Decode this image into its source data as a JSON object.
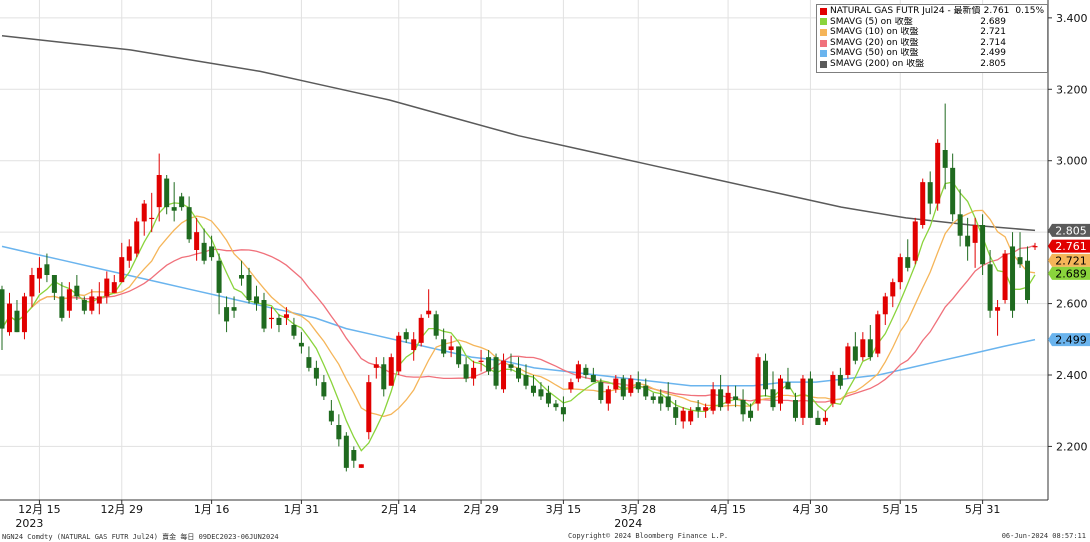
{
  "chart_data": {
    "type": "candlestick",
    "x": {
      "tick_labels": [
        "12月 15",
        "12月 29",
        "1月 16",
        "1月 31",
        "2月 14",
        "2月 29",
        "3月 15",
        "3月 28",
        "4月 15",
        "4月 30",
        "5月 15",
        "5月 31"
      ],
      "year_labels": [
        "2023",
        "2024"
      ]
    },
    "y": {
      "range": [
        2.05,
        3.45
      ],
      "tick_labels": [
        "2.200",
        "2.400",
        "2.600",
        "2.800",
        "3.000",
        "3.200",
        "3.400"
      ],
      "ticks": [
        2.2,
        2.4,
        2.6,
        2.8,
        3.0,
        3.2,
        3.4
      ],
      "position": "right"
    },
    "grid": true,
    "legend_position": "top-right",
    "ohlc": [
      {
        "o": 2.64,
        "h": 2.65,
        "l": 2.47,
        "c": 2.53
      },
      {
        "o": 2.52,
        "h": 2.63,
        "l": 2.51,
        "c": 2.6
      },
      {
        "o": 2.58,
        "h": 2.61,
        "l": 2.52,
        "c": 2.52
      },
      {
        "o": 2.52,
        "h": 2.63,
        "l": 2.5,
        "c": 2.62
      },
      {
        "o": 2.62,
        "h": 2.7,
        "l": 2.59,
        "c": 2.68
      },
      {
        "o": 2.67,
        "h": 2.73,
        "l": 2.63,
        "c": 2.7
      },
      {
        "o": 2.71,
        "h": 2.74,
        "l": 2.66,
        "c": 2.68
      },
      {
        "o": 2.68,
        "h": 2.68,
        "l": 2.61,
        "c": 2.63
      },
      {
        "o": 2.62,
        "h": 2.66,
        "l": 2.55,
        "c": 2.56
      },
      {
        "o": 2.58,
        "h": 2.66,
        "l": 2.56,
        "c": 2.64
      },
      {
        "o": 2.65,
        "h": 2.68,
        "l": 2.61,
        "c": 2.62
      },
      {
        "o": 2.61,
        "h": 2.62,
        "l": 2.57,
        "c": 2.58
      },
      {
        "o": 2.58,
        "h": 2.64,
        "l": 2.57,
        "c": 2.62
      },
      {
        "o": 2.6,
        "h": 2.66,
        "l": 2.57,
        "c": 2.62
      },
      {
        "o": 2.62,
        "h": 2.69,
        "l": 2.6,
        "c": 2.67
      },
      {
        "o": 2.63,
        "h": 2.68,
        "l": 2.63,
        "c": 2.66
      },
      {
        "o": 2.66,
        "h": 2.77,
        "l": 2.66,
        "c": 2.73
      },
      {
        "o": 2.72,
        "h": 2.78,
        "l": 2.7,
        "c": 2.76
      },
      {
        "o": 2.74,
        "h": 2.84,
        "l": 2.73,
        "c": 2.83
      },
      {
        "o": 2.83,
        "h": 2.89,
        "l": 2.79,
        "c": 2.88
      },
      {
        "o": 2.84,
        "h": 2.91,
        "l": 2.8,
        "c": 2.84
      },
      {
        "o": 2.87,
        "h": 3.02,
        "l": 2.83,
        "c": 2.96
      },
      {
        "o": 2.95,
        "h": 2.96,
        "l": 2.85,
        "c": 2.87
      },
      {
        "o": 2.87,
        "h": 2.94,
        "l": 2.83,
        "c": 2.86
      },
      {
        "o": 2.9,
        "h": 2.91,
        "l": 2.86,
        "c": 2.87
      },
      {
        "o": 2.87,
        "h": 2.9,
        "l": 2.77,
        "c": 2.78
      },
      {
        "o": 2.75,
        "h": 2.84,
        "l": 2.72,
        "c": 2.8
      },
      {
        "o": 2.77,
        "h": 2.81,
        "l": 2.71,
        "c": 2.72
      },
      {
        "o": 2.76,
        "h": 2.79,
        "l": 2.72,
        "c": 2.73
      },
      {
        "o": 2.72,
        "h": 2.74,
        "l": 2.57,
        "c": 2.63
      },
      {
        "o": 2.59,
        "h": 2.62,
        "l": 2.52,
        "c": 2.55
      },
      {
        "o": 2.59,
        "h": 2.62,
        "l": 2.56,
        "c": 2.58
      },
      {
        "o": 2.68,
        "h": 2.72,
        "l": 2.65,
        "c": 2.67
      },
      {
        "o": 2.68,
        "h": 2.7,
        "l": 2.6,
        "c": 2.61
      },
      {
        "o": 2.62,
        "h": 2.65,
        "l": 2.58,
        "c": 2.6
      },
      {
        "o": 2.61,
        "h": 2.63,
        "l": 2.52,
        "c": 2.53
      },
      {
        "o": 2.56,
        "h": 2.59,
        "l": 2.53,
        "c": 2.56
      },
      {
        "o": 2.56,
        "h": 2.57,
        "l": 2.52,
        "c": 2.54
      },
      {
        "o": 2.56,
        "h": 2.59,
        "l": 2.54,
        "c": 2.57
      },
      {
        "o": 2.54,
        "h": 2.56,
        "l": 2.5,
        "c": 2.51
      },
      {
        "o": 2.49,
        "h": 2.52,
        "l": 2.46,
        "c": 2.48
      },
      {
        "o": 2.45,
        "h": 2.48,
        "l": 2.41,
        "c": 2.42
      },
      {
        "o": 2.42,
        "h": 2.44,
        "l": 2.37,
        "c": 2.39
      },
      {
        "o": 2.38,
        "h": 2.4,
        "l": 2.33,
        "c": 2.34
      },
      {
        "o": 2.3,
        "h": 2.33,
        "l": 2.26,
        "c": 2.27
      },
      {
        "o": 2.26,
        "h": 2.29,
        "l": 2.2,
        "c": 2.22
      },
      {
        "o": 2.23,
        "h": 2.24,
        "l": 2.13,
        "c": 2.14
      },
      {
        "o": 2.19,
        "h": 2.2,
        "l": 2.14,
        "c": 2.16
      },
      {
        "o": 2.14,
        "h": 2.15,
        "l": 2.14,
        "c": 2.15
      },
      {
        "o": 2.24,
        "h": 2.4,
        "l": 2.22,
        "c": 2.38
      },
      {
        "o": 2.42,
        "h": 2.45,
        "l": 2.39,
        "c": 2.43
      },
      {
        "o": 2.43,
        "h": 2.45,
        "l": 2.34,
        "c": 2.36
      },
      {
        "o": 2.37,
        "h": 2.46,
        "l": 2.37,
        "c": 2.45
      },
      {
        "o": 2.41,
        "h": 2.52,
        "l": 2.4,
        "c": 2.51
      },
      {
        "o": 2.52,
        "h": 2.53,
        "l": 2.49,
        "c": 2.5
      },
      {
        "o": 2.47,
        "h": 2.52,
        "l": 2.44,
        "c": 2.5
      },
      {
        "o": 2.49,
        "h": 2.57,
        "l": 2.48,
        "c": 2.56
      },
      {
        "o": 2.57,
        "h": 2.64,
        "l": 2.56,
        "c": 2.58
      },
      {
        "o": 2.57,
        "h": 2.58,
        "l": 2.5,
        "c": 2.51
      },
      {
        "o": 2.5,
        "h": 2.53,
        "l": 2.45,
        "c": 2.46
      },
      {
        "o": 2.47,
        "h": 2.51,
        "l": 2.45,
        "c": 2.48
      },
      {
        "o": 2.48,
        "h": 2.48,
        "l": 2.42,
        "c": 2.43
      },
      {
        "o": 2.43,
        "h": 2.45,
        "l": 2.38,
        "c": 2.39
      },
      {
        "o": 2.39,
        "h": 2.44,
        "l": 2.37,
        "c": 2.42
      },
      {
        "o": 2.44,
        "h": 2.47,
        "l": 2.41,
        "c": 2.44
      },
      {
        "o": 2.45,
        "h": 2.47,
        "l": 2.4,
        "c": 2.41
      },
      {
        "o": 2.45,
        "h": 2.46,
        "l": 2.36,
        "c": 2.37
      },
      {
        "o": 2.36,
        "h": 2.46,
        "l": 2.35,
        "c": 2.44
      },
      {
        "o": 2.43,
        "h": 2.46,
        "l": 2.41,
        "c": 2.42
      },
      {
        "o": 2.42,
        "h": 2.45,
        "l": 2.38,
        "c": 2.39
      },
      {
        "o": 2.4,
        "h": 2.43,
        "l": 2.36,
        "c": 2.37
      },
      {
        "o": 2.37,
        "h": 2.4,
        "l": 2.34,
        "c": 2.35
      },
      {
        "o": 2.36,
        "h": 2.38,
        "l": 2.33,
        "c": 2.34
      },
      {
        "o": 2.35,
        "h": 2.37,
        "l": 2.31,
        "c": 2.32
      },
      {
        "o": 2.32,
        "h": 2.33,
        "l": 2.3,
        "c": 2.31
      },
      {
        "o": 2.31,
        "h": 2.34,
        "l": 2.27,
        "c": 2.29
      },
      {
        "o": 2.36,
        "h": 2.39,
        "l": 2.35,
        "c": 2.38
      },
      {
        "o": 2.39,
        "h": 2.44,
        "l": 2.38,
        "c": 2.43
      },
      {
        "o": 2.42,
        "h": 2.43,
        "l": 2.39,
        "c": 2.4
      },
      {
        "o": 2.4,
        "h": 2.42,
        "l": 2.38,
        "c": 2.38
      },
      {
        "o": 2.38,
        "h": 2.39,
        "l": 2.32,
        "c": 2.33
      },
      {
        "o": 2.32,
        "h": 2.37,
        "l": 2.3,
        "c": 2.36
      },
      {
        "o": 2.36,
        "h": 2.4,
        "l": 2.35,
        "c": 2.39
      },
      {
        "o": 2.39,
        "h": 2.4,
        "l": 2.33,
        "c": 2.34
      },
      {
        "o": 2.35,
        "h": 2.4,
        "l": 2.34,
        "c": 2.39
      },
      {
        "o": 2.38,
        "h": 2.41,
        "l": 2.35,
        "c": 2.36
      },
      {
        "o": 2.37,
        "h": 2.39,
        "l": 2.33,
        "c": 2.34
      },
      {
        "o": 2.34,
        "h": 2.35,
        "l": 2.32,
        "c": 2.33
      },
      {
        "o": 2.34,
        "h": 2.36,
        "l": 2.3,
        "c": 2.32
      },
      {
        "o": 2.34,
        "h": 2.38,
        "l": 2.3,
        "c": 2.31
      },
      {
        "o": 2.31,
        "h": 2.33,
        "l": 2.26,
        "c": 2.28
      },
      {
        "o": 2.27,
        "h": 2.31,
        "l": 2.25,
        "c": 2.3
      },
      {
        "o": 2.27,
        "h": 2.31,
        "l": 2.26,
        "c": 2.3
      },
      {
        "o": 2.31,
        "h": 2.33,
        "l": 2.28,
        "c": 2.3
      },
      {
        "o": 2.3,
        "h": 2.32,
        "l": 2.28,
        "c": 2.31
      },
      {
        "o": 2.3,
        "h": 2.38,
        "l": 2.29,
        "c": 2.36
      },
      {
        "o": 2.36,
        "h": 2.4,
        "l": 2.3,
        "c": 2.31
      },
      {
        "o": 2.32,
        "h": 2.37,
        "l": 2.3,
        "c": 2.35
      },
      {
        "o": 2.34,
        "h": 2.37,
        "l": 2.31,
        "c": 2.33
      },
      {
        "o": 2.33,
        "h": 2.36,
        "l": 2.27,
        "c": 2.29
      },
      {
        "o": 2.3,
        "h": 2.32,
        "l": 2.27,
        "c": 2.28
      },
      {
        "o": 2.32,
        "h": 2.46,
        "l": 2.3,
        "c": 2.45
      },
      {
        "o": 2.44,
        "h": 2.46,
        "l": 2.34,
        "c": 2.36
      },
      {
        "o": 2.36,
        "h": 2.41,
        "l": 2.3,
        "c": 2.31
      },
      {
        "o": 2.32,
        "h": 2.4,
        "l": 2.3,
        "c": 2.39
      },
      {
        "o": 2.38,
        "h": 2.42,
        "l": 2.36,
        "c": 2.36
      },
      {
        "o": 2.33,
        "h": 2.35,
        "l": 2.27,
        "c": 2.28
      },
      {
        "o": 2.28,
        "h": 2.4,
        "l": 2.26,
        "c": 2.39
      },
      {
        "o": 2.39,
        "h": 2.41,
        "l": 2.28,
        "c": 2.28
      },
      {
        "o": 2.28,
        "h": 2.3,
        "l": 2.26,
        "c": 2.26
      },
      {
        "o": 2.27,
        "h": 2.3,
        "l": 2.26,
        "c": 2.28
      },
      {
        "o": 2.32,
        "h": 2.41,
        "l": 2.31,
        "c": 2.4
      },
      {
        "o": 2.4,
        "h": 2.42,
        "l": 2.36,
        "c": 2.37
      },
      {
        "o": 2.4,
        "h": 2.49,
        "l": 2.39,
        "c": 2.48
      },
      {
        "o": 2.48,
        "h": 2.52,
        "l": 2.43,
        "c": 2.44
      },
      {
        "o": 2.45,
        "h": 2.52,
        "l": 2.44,
        "c": 2.5
      },
      {
        "o": 2.5,
        "h": 2.54,
        "l": 2.44,
        "c": 2.45
      },
      {
        "o": 2.46,
        "h": 2.58,
        "l": 2.45,
        "c": 2.57
      },
      {
        "o": 2.57,
        "h": 2.63,
        "l": 2.54,
        "c": 2.62
      },
      {
        "o": 2.62,
        "h": 2.67,
        "l": 2.59,
        "c": 2.66
      },
      {
        "o": 2.66,
        "h": 2.74,
        "l": 2.64,
        "c": 2.73
      },
      {
        "o": 2.73,
        "h": 2.78,
        "l": 2.69,
        "c": 2.7
      },
      {
        "o": 2.72,
        "h": 2.84,
        "l": 2.71,
        "c": 2.83
      },
      {
        "o": 2.82,
        "h": 2.95,
        "l": 2.81,
        "c": 2.94
      },
      {
        "o": 2.94,
        "h": 2.97,
        "l": 2.85,
        "c": 2.88
      },
      {
        "o": 2.88,
        "h": 3.06,
        "l": 2.86,
        "c": 3.05
      },
      {
        "o": 3.03,
        "h": 3.16,
        "l": 2.92,
        "c": 2.98
      },
      {
        "o": 2.98,
        "h": 3.02,
        "l": 2.83,
        "c": 2.85
      },
      {
        "o": 2.85,
        "h": 2.92,
        "l": 2.76,
        "c": 2.79
      },
      {
        "o": 2.79,
        "h": 2.84,
        "l": 2.72,
        "c": 2.76
      },
      {
        "o": 2.77,
        "h": 2.84,
        "l": 2.7,
        "c": 2.82
      },
      {
        "o": 2.82,
        "h": 2.85,
        "l": 2.68,
        "c": 2.71
      },
      {
        "o": 2.71,
        "h": 2.75,
        "l": 2.56,
        "c": 2.58
      },
      {
        "o": 2.58,
        "h": 2.61,
        "l": 2.51,
        "c": 2.59
      },
      {
        "o": 2.61,
        "h": 2.75,
        "l": 2.6,
        "c": 2.74
      },
      {
        "o": 2.76,
        "h": 2.8,
        "l": 2.56,
        "c": 2.58
      },
      {
        "o": 2.73,
        "h": 2.8,
        "l": 2.7,
        "c": 2.71
      },
      {
        "o": 2.72,
        "h": 2.76,
        "l": 2.6,
        "c": 2.61
      },
      {
        "o": 2.76,
        "h": 2.77,
        "l": 2.75,
        "c": 2.761
      }
    ],
    "series": [
      {
        "name": "NATURAL GAS FUTR Jul24 - 最新價",
        "last": "2.761",
        "change": "0.15%",
        "color": "#e10000"
      },
      {
        "name": "SMAVG (5)  on 收盤",
        "last": "2.689",
        "color": "#8ad43c"
      },
      {
        "name": "SMAVG (10)  on 收盤",
        "last": "2.721",
        "color": "#f5b559"
      },
      {
        "name": "SMAVG (20)  on 收盤",
        "last": "2.714",
        "color": "#f0717b"
      },
      {
        "name": "SMAVG (50)  on 收盤",
        "last": "2.499",
        "color": "#6ab4ee"
      },
      {
        "name": "SMAVG (200)  on 收盤",
        "last": "2.805",
        "color": "#5a5a5a"
      }
    ],
    "sma50_values": [
      2.76,
      2.74,
      2.72,
      2.7,
      2.68,
      2.66,
      2.64,
      2.62,
      2.6,
      2.58,
      2.56,
      2.53,
      2.51,
      2.49,
      2.47,
      2.45,
      2.44,
      2.42,
      2.41,
      2.4,
      2.39,
      2.38,
      2.37,
      2.37,
      2.37,
      2.38,
      2.38,
      2.39,
      2.4,
      2.42,
      2.44,
      2.46,
      2.48,
      2.499
    ],
    "sma200_values": [
      3.35,
      3.33,
      3.31,
      3.28,
      3.25,
      3.21,
      3.17,
      3.12,
      3.07,
      3.03,
      2.99,
      2.95,
      2.91,
      2.87,
      2.84,
      2.82,
      2.805
    ],
    "price_badges": [
      {
        "label": "2.805",
        "value": 2.805,
        "bg": "#5a5a5a",
        "fg": "#ffffff"
      },
      {
        "label": "2.761",
        "value": 2.761,
        "bg": "#e10000",
        "fg": "#ffffff"
      },
      {
        "label": "2.721",
        "value": 2.721,
        "bg": "#f5b559",
        "fg": "#000000"
      },
      {
        "label": "2.689",
        "value": 2.689,
        "bg": "#8ad43c",
        "fg": "#000000"
      },
      {
        "label": "2.499",
        "value": 2.499,
        "bg": "#6ab4ee",
        "fg": "#000000"
      }
    ]
  },
  "footer": {
    "left": "NGN24 Comdty (NATURAL GAS FUTR  Jul24) 賣金  每日 09DEC2023-06JUN2024",
    "center": "Copyright© 2024 Bloomberg Finance L.P.",
    "right": "06-Jun-2024 08:57:11"
  },
  "colors": {
    "up": "#e10000",
    "down": "#1f6a1f",
    "grid": "#e1e1e1"
  }
}
